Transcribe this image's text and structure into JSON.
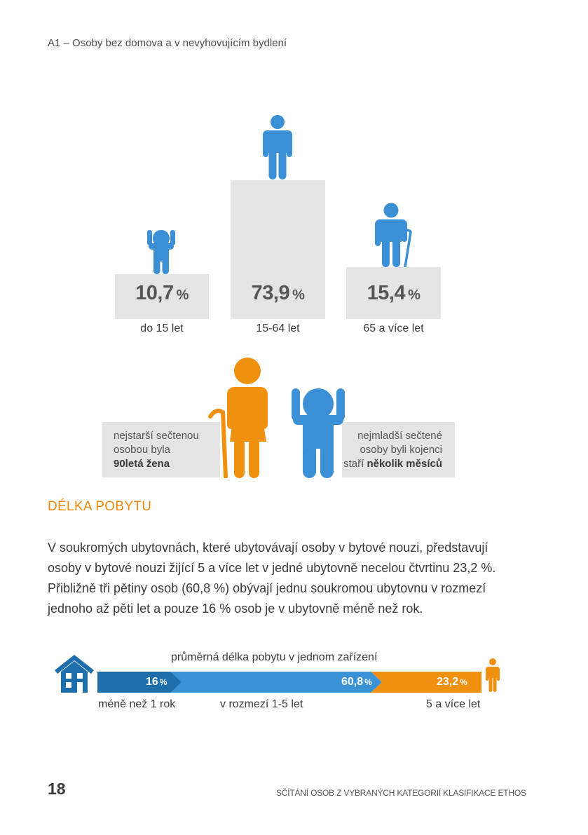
{
  "header": {
    "title": "A1 – Osoby bez domova a v nevyhovujícím bydlení"
  },
  "age_groups": [
    {
      "value": "10,7",
      "unit": "%",
      "label": "do 15 let",
      "icon": "child-icon"
    },
    {
      "value": "73,9",
      "unit": "%",
      "label": "15-64 let",
      "icon": "adult-icon"
    },
    {
      "value": "15,4",
      "unit": "%",
      "label": "65 a více let",
      "icon": "senior-icon"
    }
  ],
  "notes": {
    "oldest": {
      "line1": "nejstarší sečtenou",
      "line2": "osobou byla",
      "bold": "90letá žena"
    },
    "youngest": {
      "line1": "nejmladší sečtené",
      "line2": "osoby byli kojenci",
      "line3_prefix": "staří ",
      "bold": "několik měsíců"
    }
  },
  "section": {
    "heading": "DÉLKA POBYTU",
    "paragraph": "V soukromých ubytovnách, které ubytovávají osoby v bytové nouzi, představují osoby v bytové nouzi žijící 5 a více let v jedné ubytovně necelou čtvrtinu 23,2 %. Přibližně tři pětiny osob (60,8 %) obývají jednu soukromou ubytovnu v rozmezí jednoho až pěti let a pouze 16 % osob je v ubytovně méně než rok."
  },
  "stay_bar": {
    "caption": "průměrná délka pobytu v jednom zařízení",
    "segments": [
      {
        "value": "16",
        "unit": "%",
        "label": "méně než 1 rok",
        "color": "#1f6eac"
      },
      {
        "value": "60,8",
        "unit": "%",
        "label": "v rozmezí 1-5 let",
        "color": "#3b93d6"
      },
      {
        "value": "23,2",
        "unit": "%",
        "label": "5 a více let",
        "color": "#f0900f"
      }
    ]
  },
  "colors": {
    "blue": "#3b8fd4",
    "dark_blue": "#1f6eac",
    "orange": "#f0900f",
    "grey_box": "#e4e4e4"
  },
  "footer": {
    "page_number": "18",
    "text": "SČÍTÁNÍ OSOB Z VYBRANÝCH KATEGORIÍ KLASIFIKACE ETHOS"
  }
}
